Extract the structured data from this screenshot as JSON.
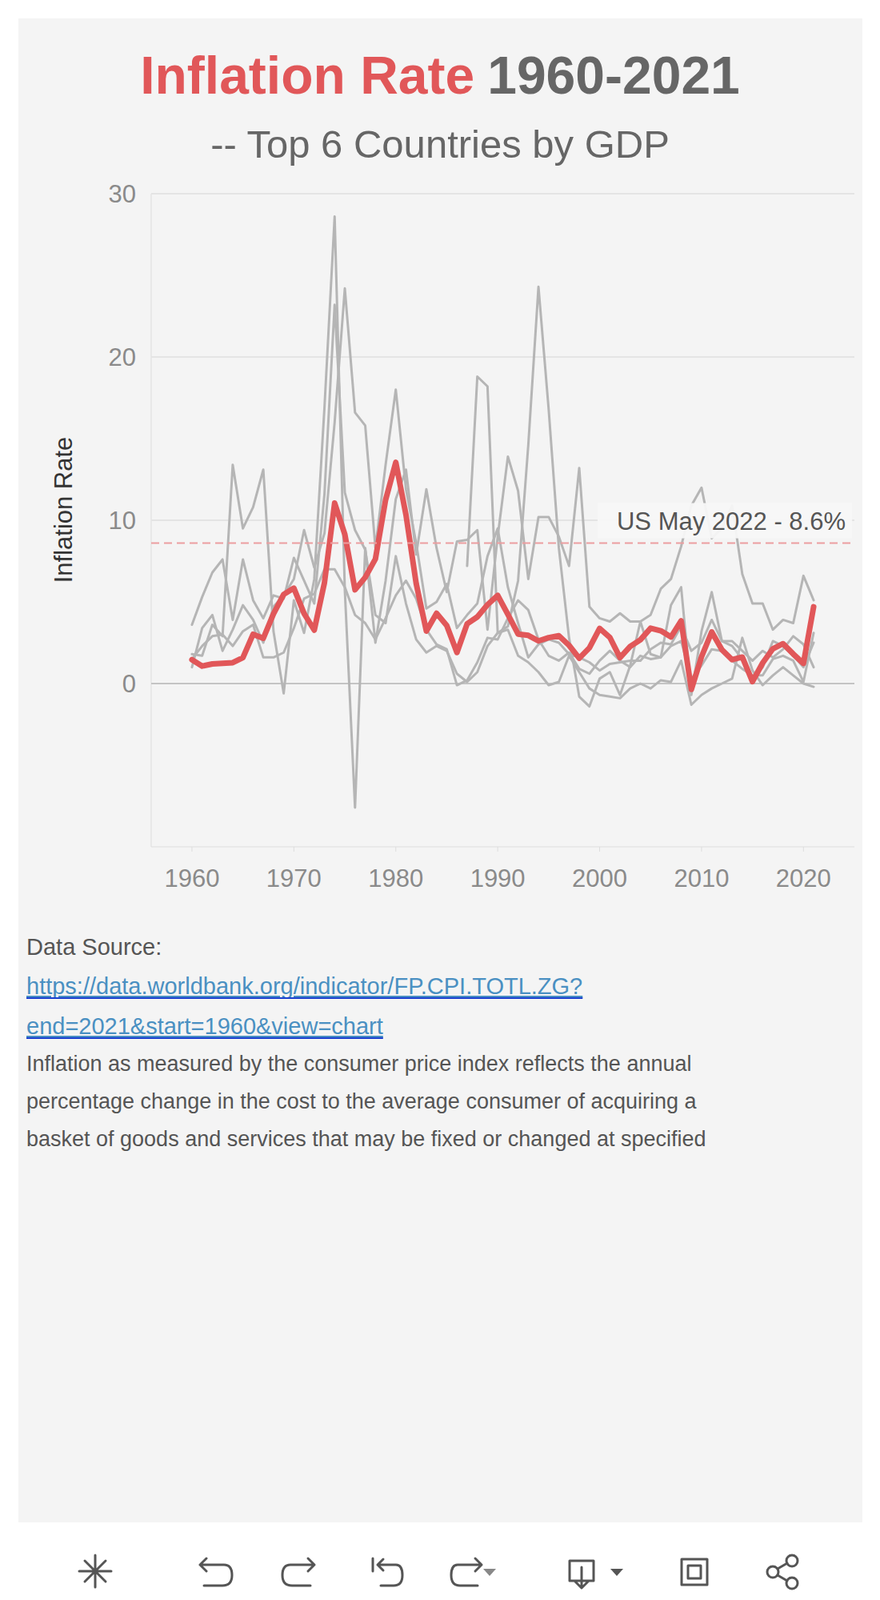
{
  "chart_data": {
    "type": "line",
    "title": {
      "highlight": "Inflation Rate",
      "rest": "1960-2021"
    },
    "subtitle": "-- Top 6 Countries by GDP",
    "y_label": "Inflation Rate",
    "x": [
      1960,
      1961,
      1962,
      1963,
      1964,
      1965,
      1966,
      1967,
      1968,
      1969,
      1970,
      1971,
      1972,
      1973,
      1974,
      1975,
      1976,
      1977,
      1978,
      1979,
      1980,
      1981,
      1982,
      1983,
      1984,
      1985,
      1986,
      1987,
      1988,
      1989,
      1990,
      1991,
      1992,
      1993,
      1994,
      1995,
      1996,
      1997,
      1998,
      1999,
      2000,
      2001,
      2002,
      2003,
      2004,
      2005,
      2006,
      2007,
      2008,
      2009,
      2010,
      2011,
      2012,
      2013,
      2014,
      2015,
      2016,
      2017,
      2018,
      2019,
      2020,
      2021
    ],
    "series": [
      {
        "color": "#b5b5b5",
        "values": [
          3.6,
          5.3,
          6.8,
          7.6,
          3.9,
          7.6,
          5.1,
          4.0,
          5.4,
          5.2,
          7.7,
          6.3,
          4.9,
          11.6,
          23.2,
          11.7,
          9.4,
          8.2,
          4.2,
          3.7,
          7.8,
          4.9,
          2.7,
          1.9,
          2.3,
          2.0,
          0.6,
          0.1,
          0.7,
          2.3,
          3.1,
          3.3,
          1.7,
          1.3,
          0.7,
          -0.1,
          0.1,
          1.7,
          0.7,
          -0.3,
          -0.7,
          -0.8,
          -0.9,
          -0.3,
          0.0,
          -0.3,
          0.2,
          0.1,
          1.4,
          -1.3,
          -0.7,
          -0.3,
          0.0,
          0.3,
          2.8,
          0.8,
          -0.1,
          0.5,
          1.0,
          0.5,
          0.0,
          -0.2
        ]
      },
      {
        "color": "#b5b5b5",
        "values": [
          1.0,
          3.4,
          4.2,
          2.0,
          3.3,
          4.8,
          3.9,
          2.5,
          4.7,
          5.4,
          6.4,
          9.4,
          7.1,
          9.2,
          16.0,
          24.2,
          16.6,
          15.8,
          8.3,
          13.4,
          18.0,
          11.9,
          8.6,
          4.6,
          5.0,
          6.1,
          3.4,
          4.2,
          4.9,
          7.8,
          9.5,
          5.9,
          3.7,
          1.6,
          2.4,
          2.7,
          2.5,
          1.8,
          1.6,
          1.3,
          0.8,
          1.2,
          1.3,
          1.4,
          1.4,
          2.1,
          2.5,
          2.4,
          3.5,
          2.0,
          2.5,
          3.9,
          2.6,
          2.3,
          1.5,
          0.4,
          1.0,
          2.6,
          2.3,
          1.7,
          1.0,
          2.5
        ]
      },
      {
        "color": "#b5b5b5",
        "values": [
          1.5,
          2.3,
          2.9,
          3.0,
          2.3,
          3.2,
          3.6,
          1.6,
          1.6,
          1.9,
          3.4,
          5.2,
          5.5,
          7.0,
          7.0,
          5.9,
          4.2,
          3.7,
          2.7,
          4.0,
          5.4,
          6.3,
          5.2,
          3.3,
          2.4,
          2.1,
          -0.1,
          0.2,
          1.3,
          2.8,
          2.7,
          4.0,
          5.1,
          4.5,
          2.7,
          1.7,
          1.4,
          1.9,
          0.9,
          0.6,
          1.4,
          2.0,
          1.4,
          1.0,
          1.7,
          1.5,
          1.6,
          2.3,
          2.6,
          0.3,
          1.1,
          2.1,
          2.0,
          1.4,
          0.9,
          0.5,
          0.5,
          1.5,
          1.7,
          1.4,
          0.1,
          3.1
        ]
      },
      {
        "color": "#b5b5b5",
        "values": [
          1.8,
          1.7,
          3.6,
          2.9,
          13.4,
          9.5,
          10.8,
          13.1,
          3.2,
          -0.6,
          5.1,
          3.1,
          6.4,
          16.9,
          28.6,
          5.7,
          -7.6,
          8.3,
          2.5,
          6.3,
          11.3,
          13.1,
          7.9,
          11.9,
          8.3,
          5.6,
          8.7,
          8.8,
          9.4,
          3.3,
          9.0,
          13.9,
          11.8,
          6.4,
          10.2,
          10.2,
          9.0,
          7.2,
          13.2,
          4.7,
          4.0,
          3.8,
          4.3,
          3.8,
          3.8,
          4.2,
          5.8,
          6.4,
          8.4,
          10.9,
          12.0,
          8.9,
          9.5,
          10.9,
          6.7,
          4.9,
          4.9,
          3.3,
          3.9,
          3.7,
          6.6,
          5.1
        ]
      },
      {
        "color": "#b5b5b5",
        "values": [
          null,
          null,
          null,
          null,
          null,
          null,
          null,
          null,
          null,
          null,
          null,
          null,
          null,
          null,
          null,
          null,
          null,
          null,
          null,
          null,
          null,
          null,
          null,
          null,
          null,
          null,
          null,
          7.2,
          18.8,
          18.2,
          3.1,
          3.5,
          6.3,
          14.6,
          24.3,
          16.8,
          8.3,
          2.8,
          -0.8,
          -1.4,
          0.3,
          0.7,
          -0.7,
          1.1,
          3.8,
          1.8,
          1.6,
          4.8,
          5.9,
          -0.7,
          3.2,
          5.6,
          2.6,
          2.6,
          2.0,
          1.4,
          2.0,
          1.6,
          2.1,
          2.9,
          2.4,
          1.0
        ]
      },
      {
        "color": "#e15759",
        "values": [
          1.46,
          1.07,
          1.2,
          1.24,
          1.28,
          1.59,
          3.02,
          2.77,
          4.27,
          5.46,
          5.84,
          4.29,
          3.27,
          6.18,
          11.05,
          9.14,
          5.74,
          6.5,
          7.63,
          11.25,
          13.55,
          10.33,
          6.13,
          3.21,
          4.3,
          3.55,
          1.9,
          3.66,
          4.08,
          4.83,
          5.4,
          4.23,
          3.03,
          2.95,
          2.61,
          2.81,
          2.93,
          2.34,
          1.55,
          2.19,
          3.38,
          2.83,
          1.59,
          2.27,
          2.68,
          3.39,
          3.23,
          2.85,
          3.84,
          -0.36,
          1.64,
          3.16,
          2.07,
          1.46,
          1.62,
          0.12,
          1.26,
          2.13,
          2.44,
          1.81,
          1.23,
          4.7
        ]
      }
    ],
    "xlim": [
      1956,
      2025
    ],
    "ylim": [
      -10,
      30
    ],
    "xticks": [
      1960,
      1970,
      1980,
      1990,
      2000,
      2010,
      2020
    ],
    "yticks": [
      0,
      10,
      20,
      30
    ],
    "grid": true,
    "annotations": [
      {
        "y": 8.6,
        "text": "US May 2022 - 8.6%"
      }
    ]
  },
  "footer": {
    "source_label": "Data Source:",
    "source_url": [
      "https://data.worldbank.org/indicator/FP.CPI.TOTL.ZG?",
      "end=2021&start=1960&view=chart"
    ],
    "description": [
      "Inflation as measured by the consumer price index reflects the annual",
      "percentage change in the cost to the average consumer of acquiring a",
      "basket of goods and services that may be fixed or changed at specified"
    ]
  }
}
